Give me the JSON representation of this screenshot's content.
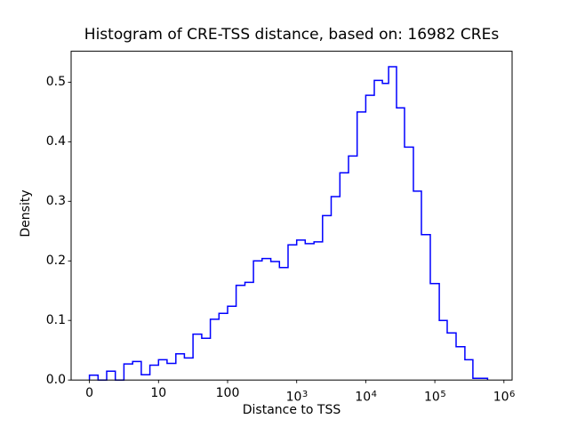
{
  "chart": {
    "x_axis": {
      "scale": "symlog",
      "ticks": [
        {
          "value": 0,
          "base": "0",
          "exp": ""
        },
        {
          "value": 10,
          "base": "10",
          "exp": ""
        },
        {
          "value": 100,
          "base": "100",
          "exp": ""
        },
        {
          "value": 1000,
          "base": "10",
          "exp": "3"
        },
        {
          "value": 10000,
          "base": "10",
          "exp": "4"
        },
        {
          "value": 100000,
          "base": "10",
          "exp": "5"
        },
        {
          "value": 1000000,
          "base": "10",
          "exp": "6"
        }
      ]
    },
    "y_axis": {
      "ticks": [
        {
          "value": 0.0,
          "label": "0.0"
        },
        {
          "value": 0.1,
          "label": "0.1"
        },
        {
          "value": 0.2,
          "label": "0.2"
        },
        {
          "value": 0.3,
          "label": "0.3"
        },
        {
          "value": 0.4,
          "label": "0.4"
        },
        {
          "value": 0.5,
          "label": "0.5"
        }
      ]
    },
    "colors": {
      "line": "#0000ff",
      "axes": "#000000",
      "text": "#000000",
      "background": "#ffffff"
    }
  },
  "chart_data": {
    "type": "bar",
    "subtype": "step-histogram",
    "title": "Histogram of CRE-TSS distance, based on: 16982 CREs",
    "xlabel": "Distance to TSS",
    "ylabel": "Density",
    "n_samples_in_title": 16982,
    "x_scale": "symlog",
    "xlim": [
      0,
      1000000
    ],
    "ylim": [
      0,
      0.552
    ],
    "grid": false,
    "legend": false,
    "bin_edges": [
      0,
      1.25,
      2.5,
      3.75,
      5,
      6.25,
      7.5,
      8.75,
      10,
      13.3,
      17.8,
      23.7,
      31.6,
      42.2,
      56.2,
      75,
      100,
      133,
      178,
      237,
      316,
      422,
      562,
      750,
      1000,
      1330,
      1780,
      2370,
      3160,
      4220,
      5620,
      7500,
      10000,
      13300,
      17400,
      21400,
      27900,
      36400,
      49000,
      64000,
      85900,
      116000,
      151000,
      203000,
      272000,
      356000,
      580000
    ],
    "densities": [
      0.008,
      0.0,
      0.015,
      0.0,
      0.027,
      0.031,
      0.009,
      0.025,
      0.034,
      0.028,
      0.044,
      0.037,
      0.077,
      0.07,
      0.102,
      0.112,
      0.124,
      0.159,
      0.164,
      0.2,
      0.204,
      0.199,
      0.189,
      0.227,
      0.235,
      0.229,
      0.232,
      0.276,
      0.308,
      0.348,
      0.376,
      0.45,
      0.478,
      0.503,
      0.498,
      0.526,
      0.457,
      0.391,
      0.317,
      0.244,
      0.162,
      0.1,
      0.079,
      0.056,
      0.034,
      0.003
    ]
  }
}
